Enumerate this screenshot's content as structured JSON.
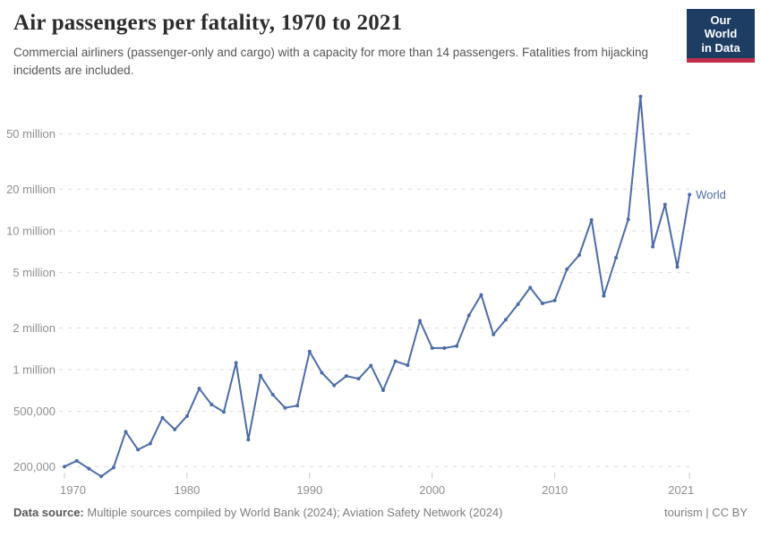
{
  "header": {
    "title": "Air passengers per fatality, 1970 to 2021",
    "subtitle": "Commercial airliners (passenger-only and cargo) with a capacity for more than 14 passengers. Fatalities from hijacking incidents are included."
  },
  "logo": {
    "line1": "Our World",
    "line2": "in Data",
    "bg_color": "#1d3d63",
    "stripe_color": "#c02e4d"
  },
  "footer": {
    "datasource_label": "Data source:",
    "datasource_text": " Multiple sources compiled by World Bank (2024); Aviation Safety Network (2024)",
    "rights": "tourism | CC BY"
  },
  "chart_data": {
    "type": "line",
    "title": "Air passengers per fatality, 1970 to 2021",
    "xlabel": "",
    "ylabel": "",
    "y_scale": "log",
    "grid": "dashed-horizontal",
    "legend_position": "end-of-line",
    "x_range": [
      1970,
      2021
    ],
    "y_range": [
      170000,
      93000000
    ],
    "x_ticks": [
      {
        "value": 1970,
        "label": "1970"
      },
      {
        "value": 1980,
        "label": "1980"
      },
      {
        "value": 1990,
        "label": "1990"
      },
      {
        "value": 2000,
        "label": "2000"
      },
      {
        "value": 2010,
        "label": "2010"
      },
      {
        "value": 2021,
        "label": "2021"
      }
    ],
    "y_ticks": [
      {
        "value": 200000,
        "label": "200,000"
      },
      {
        "value": 500000,
        "label": "500,000"
      },
      {
        "value": 1000000,
        "label": "1 million"
      },
      {
        "value": 2000000,
        "label": "2 million"
      },
      {
        "value": 5000000,
        "label": "5 million"
      },
      {
        "value": 10000000,
        "label": "10 million"
      },
      {
        "value": 20000000,
        "label": "20 million"
      },
      {
        "value": 50000000,
        "label": "50 million"
      }
    ],
    "grid_color": "#dcdcdc",
    "tick_color": "#c8c8c8",
    "series": [
      {
        "name": "World",
        "color": "#4c6ca9",
        "x": [
          1970,
          1971,
          1972,
          1973,
          1974,
          1975,
          1976,
          1977,
          1978,
          1979,
          1980,
          1981,
          1982,
          1983,
          1984,
          1985,
          1986,
          1987,
          1988,
          1989,
          1990,
          1991,
          1992,
          1993,
          1994,
          1995,
          1996,
          1997,
          1998,
          1999,
          2000,
          2001,
          2002,
          2003,
          2004,
          2005,
          2006,
          2007,
          2008,
          2009,
          2010,
          2011,
          2012,
          2013,
          2014,
          2015,
          2016,
          2017,
          2018,
          2019,
          2020,
          2021
        ],
        "values": [
          200000,
          220000,
          193000,
          170000,
          197000,
          357000,
          265000,
          293000,
          450000,
          370000,
          463000,
          730000,
          560000,
          495000,
          1120000,
          313000,
          905000,
          660000,
          530000,
          550000,
          1350000,
          950000,
          770000,
          900000,
          860000,
          1070000,
          710000,
          1150000,
          1075000,
          2250000,
          1430000,
          1430000,
          1480000,
          2460000,
          3460000,
          1790000,
          2290000,
          2960000,
          3900000,
          3000000,
          3150000,
          5300000,
          6700000,
          12000000,
          3400000,
          6400000,
          12100000,
          93000000,
          7700000,
          15500000,
          5500000,
          18300000
        ]
      }
    ]
  }
}
